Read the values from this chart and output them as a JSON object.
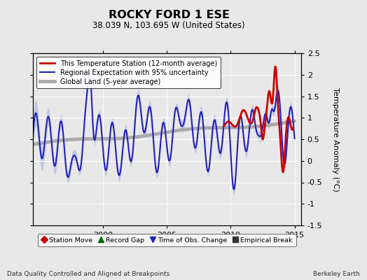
{
  "title": "ROCKY FORD 1 ESE",
  "subtitle": "38.039 N, 103.695 W (United States)",
  "ylabel": "Temperature Anomaly (°C)",
  "footer_left": "Data Quality Controlled and Aligned at Breakpoints",
  "footer_right": "Berkeley Earth",
  "ylim": [
    -1.5,
    2.5
  ],
  "xlim": [
    1994.5,
    2015.5
  ],
  "yticks": [
    -1.5,
    -1.0,
    -0.5,
    0.0,
    0.5,
    1.0,
    1.5,
    2.0,
    2.5
  ],
  "xticks": [
    2000,
    2005,
    2010,
    2015
  ],
  "bg_color": "#e8e8e8",
  "plot_bg_color": "#e8e8e8",
  "station_color": "#cc0000",
  "regional_line_color": "#2222bb",
  "regional_band_color": "#8899dd",
  "regional_band_alpha": 0.4,
  "global_color": "#aaaaaa",
  "global_lw": 3.5,
  "regional_lw": 1.5,
  "station_lw": 2.0,
  "gridcolor": "#ffffff",
  "gridlw": 0.7,
  "legend_labels": [
    "This Temperature Station (12-month average)",
    "Regional Expectation with 95% uncertainty",
    "Global Land (5-year average)"
  ],
  "bottom_legend": [
    {
      "label": "Station Move",
      "marker": "D",
      "color": "#cc0000"
    },
    {
      "label": "Record Gap",
      "marker": "^",
      "color": "#006600"
    },
    {
      "label": "Time of Obs. Change",
      "marker": "v",
      "color": "#2222bb"
    },
    {
      "label": "Empirical Break",
      "marker": "s",
      "color": "#333333"
    }
  ]
}
